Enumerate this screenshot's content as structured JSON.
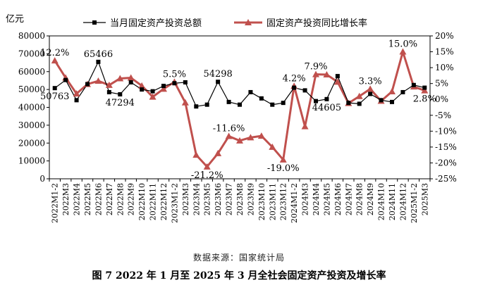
{
  "figure": {
    "source_note": "数据来源：国家统计局",
    "caption": "图 7 2022 年 1 月至 2025 年 3 月全社会固定资产投资及增长率"
  },
  "chart_data": {
    "type": "line",
    "title": "",
    "y_left_unit": "亿元",
    "ylim_left": [
      0,
      80000
    ],
    "yticks_left": [
      0,
      10000,
      20000,
      30000,
      40000,
      50000,
      60000,
      70000,
      80000
    ],
    "ylim_right": [
      -25,
      20
    ],
    "yticks_right": [
      "-25%",
      "-20%",
      "-15%",
      "-10%",
      "-5%",
      "0%",
      "5%",
      "10%",
      "15%",
      "20%"
    ],
    "yticks_right_values": [
      -25,
      -20,
      -15,
      -10,
      -5,
      0,
      5,
      10,
      15,
      20
    ],
    "legend_position": "top",
    "grid": false,
    "categories": [
      "2022M1-2",
      "2022M3",
      "2022M4",
      "2022M5",
      "2022M6",
      "2022M7",
      "2022M8",
      "2022M9",
      "2022M10",
      "2022M11",
      "2022M12",
      "2023M1-2",
      "2023M3",
      "2023M4",
      "2023M5",
      "2023M6",
      "2023M7",
      "2023M8",
      "2023M9",
      "2023M10",
      "2023M11",
      "2023M12",
      "2024M1-2",
      "2024M3",
      "2024M4",
      "2024M5",
      "2024M6",
      "2024M7",
      "2024M8",
      "2024M9",
      "2024M10",
      "2024M11",
      "2024M12",
      "2025M1-2",
      "2025M3"
    ],
    "series": [
      {
        "name": "当月固定资产投资总额",
        "axis": "left",
        "color": "#000000",
        "values": [
          50763,
          55300,
          44000,
          53000,
          65466,
          48500,
          47294,
          54000,
          50000,
          49000,
          52000,
          53500,
          54000,
          40500,
          41500,
          54298,
          43000,
          41500,
          48500,
          45000,
          41500,
          42500,
          51000,
          49500,
          43500,
          44605,
          57500,
          42500,
          42000,
          47500,
          44000,
          43000,
          48500,
          52500,
          51000
        ]
      },
      {
        "name": "固定资产投资同比增长率",
        "axis": "right",
        "color": "#C0504D",
        "values": [
          12.2,
          6.8,
          1.8,
          4.8,
          5.8,
          4.5,
          6.6,
          6.8,
          4.3,
          0.8,
          3.3,
          5.5,
          -1.0,
          -17.5,
          -21.2,
          -17.0,
          -11.6,
          -13.0,
          -12.0,
          -11.5,
          -15.0,
          -19.0,
          4.2,
          -8.5,
          7.9,
          7.8,
          5.5,
          -1.2,
          1.0,
          3.3,
          -0.5,
          2.5,
          15.0,
          4.0,
          2.8
        ]
      }
    ],
    "data_labels": [
      {
        "series": 0,
        "index": 0,
        "text": "50763",
        "pos": "below"
      },
      {
        "series": 0,
        "index": 4,
        "text": "65466",
        "pos": "above"
      },
      {
        "series": 0,
        "index": 6,
        "text": "47294",
        "pos": "below"
      },
      {
        "series": 0,
        "index": 15,
        "text": "54298",
        "pos": "above"
      },
      {
        "series": 0,
        "index": 25,
        "text": "44605",
        "pos": "below"
      },
      {
        "series": 1,
        "index": 0,
        "text": "12.2%",
        "pos": "above"
      },
      {
        "series": 1,
        "index": 11,
        "text": "5.5%",
        "pos": "above"
      },
      {
        "series": 1,
        "index": 14,
        "text": "-21.2%",
        "pos": "below"
      },
      {
        "series": 1,
        "index": 16,
        "text": "-11.6%",
        "pos": "above"
      },
      {
        "series": 1,
        "index": 21,
        "text": "-19.0%",
        "pos": "below"
      },
      {
        "series": 1,
        "index": 22,
        "text": "4.2%",
        "pos": "above"
      },
      {
        "series": 1,
        "index": 24,
        "text": "7.9%",
        "pos": "above"
      },
      {
        "series": 1,
        "index": 29,
        "text": "3.3%",
        "pos": "above"
      },
      {
        "series": 1,
        "index": 32,
        "text": "15.0%",
        "pos": "above"
      },
      {
        "series": 1,
        "index": 34,
        "text": "2.8%",
        "pos": "below"
      }
    ]
  }
}
